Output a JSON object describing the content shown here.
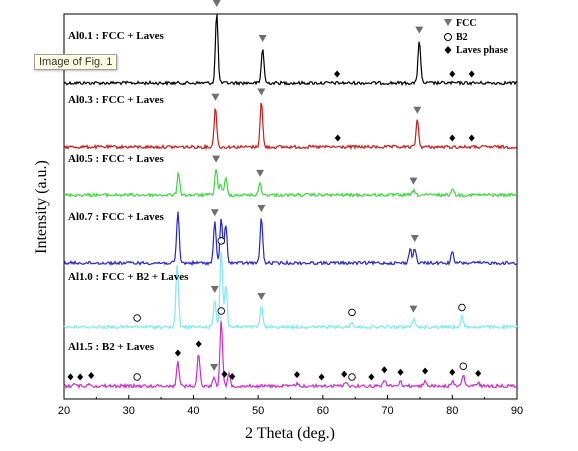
{
  "tooltip": "Image of Fig. 1",
  "chart_data": {
    "type": "line",
    "xlabel": "2 Theta (deg.)",
    "ylabel": "Intensity (a.u.)",
    "xlim": [
      20,
      90
    ],
    "xticks": [
      20,
      30,
      40,
      50,
      60,
      70,
      80,
      90
    ],
    "legend": {
      "placement": "top-right",
      "entries": [
        {
          "symbol": "triangle",
          "label": "FCC"
        },
        {
          "symbol": "circle",
          "label": "B2"
        },
        {
          "symbol": "diamond",
          "label": "Laves phase"
        }
      ]
    },
    "series": [
      {
        "name": "Al0.1 : FCC + Laves",
        "color": "#000000",
        "peaks": [
          [
            43.6,
            1.0
          ],
          [
            50.7,
            0.5
          ],
          [
            74.9,
            0.62
          ]
        ],
        "markers": {
          "triangle": [
            43.6,
            50.7,
            74.9
          ],
          "circle": [],
          "diamond": [
            62.2,
            80.0,
            83.0
          ]
        }
      },
      {
        "name": "Al0.3 : FCC + Laves",
        "color": "#c0201b",
        "peaks": [
          [
            43.4,
            0.62
          ],
          [
            50.5,
            0.7
          ],
          [
            74.6,
            0.42
          ]
        ],
        "markers": {
          "triangle": [
            43.4,
            50.5,
            74.6
          ],
          "circle": [],
          "diamond": [
            62.3,
            80.0,
            83.0
          ]
        }
      },
      {
        "name": "Al0.5 : FCC + Laves",
        "color": "#3fd63f",
        "peaks": [
          [
            37.7,
            0.4
          ],
          [
            43.5,
            0.48
          ],
          [
            44.2,
            0.2
          ],
          [
            45.0,
            0.3
          ],
          [
            50.3,
            0.22
          ],
          [
            74.0,
            0.08
          ],
          [
            80.0,
            0.12
          ]
        ],
        "markers": {
          "triangle": [
            43.5,
            50.3,
            74.0
          ],
          "circle": [],
          "diamond": []
        }
      },
      {
        "name": "Al0.7 : FCC + Laves",
        "color": "#2626c8",
        "peaks": [
          [
            37.6,
            0.85
          ],
          [
            43.3,
            0.68
          ],
          [
            44.3,
            0.75
          ],
          [
            45.0,
            0.65
          ],
          [
            50.5,
            0.75
          ],
          [
            73.5,
            0.25
          ],
          [
            74.2,
            0.25
          ],
          [
            80.0,
            0.18
          ]
        ],
        "markers": {
          "triangle": [
            43.3,
            50.5,
            74.2
          ],
          "circle": [],
          "diamond": []
        }
      },
      {
        "name": "Al1.0 : FCC + B2 + Laves",
        "color": "#80e8f0",
        "peaks": [
          [
            37.5,
            0.9
          ],
          [
            43.3,
            0.4
          ],
          [
            44.3,
            1.1
          ],
          [
            45.0,
            0.6
          ],
          [
            50.5,
            0.3
          ],
          [
            64.5,
            0.08
          ],
          [
            74.0,
            0.12
          ],
          [
            81.5,
            0.15
          ]
        ],
        "markers": {
          "triangle": [
            43.3,
            50.5,
            74.0
          ],
          "circle": [
            31.3,
            44.3,
            64.5,
            81.5
          ],
          "diamond": []
        }
      },
      {
        "name": "Al1.5 : B2 + Laves",
        "color": "#c830c8",
        "peaks": [
          [
            21.5,
            0.04
          ],
          [
            24.0,
            0.04
          ],
          [
            37.6,
            0.4
          ],
          [
            40.8,
            0.55
          ],
          [
            43.2,
            0.15
          ],
          [
            44.3,
            1.1
          ],
          [
            45.5,
            0.2
          ],
          [
            56.0,
            0.04
          ],
          [
            63.5,
            0.08
          ],
          [
            69.5,
            0.12
          ],
          [
            72.0,
            0.08
          ],
          [
            75.8,
            0.1
          ],
          [
            80.0,
            0.08
          ],
          [
            81.7,
            0.18
          ],
          [
            84.0,
            0.06
          ]
        ],
        "markers": {
          "triangle": [
            43.2
          ],
          "circle": [
            31.3,
            44.3,
            64.5,
            81.7
          ],
          "diamond": [
            21.0,
            22.5,
            24.2,
            37.6,
            40.8,
            44.8,
            46.0,
            56.0,
            59.8,
            63.3,
            67.5,
            69.5,
            72.0,
            75.8,
            80.0,
            84.0
          ]
        }
      }
    ]
  }
}
